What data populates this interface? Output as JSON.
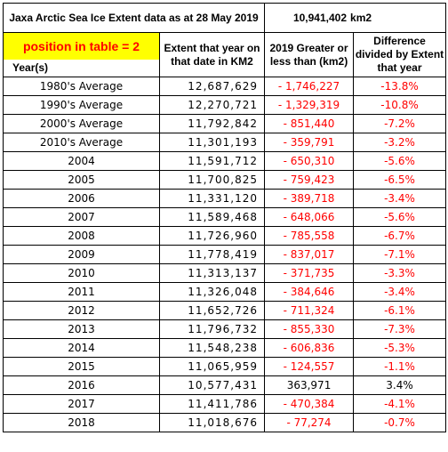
{
  "title": "Jaxa Arctic Sea Ice Extent data as at 28 May 2019",
  "current_value": "10,941,402",
  "current_unit": "km2",
  "position_label": "position in table = 2",
  "headers": {
    "year": "Year(s)",
    "extent": "Extent that year on that date in KM2",
    "diff": "2019 Greater or less than (km2)",
    "ratio": "Difference divided by Extent that year"
  },
  "colors": {
    "negative": "#ff0000",
    "highlight": "#ffff00"
  },
  "rows": [
    {
      "label": "1980's Average",
      "extent": "12,687,629",
      "diff": "- 1,746,227",
      "ratio": "-13.8%",
      "negative": true
    },
    {
      "label": "1990's Average",
      "extent": "12,270,721",
      "diff": "- 1,329,319",
      "ratio": "-10.8%",
      "negative": true
    },
    {
      "label": "2000's Average",
      "extent": "11,792,842",
      "diff": "- 851,440",
      "ratio": "-7.2%",
      "negative": true
    },
    {
      "label": "2010's Average",
      "extent": "11,301,193",
      "diff": "- 359,791",
      "ratio": "-3.2%",
      "negative": true
    },
    {
      "label": "2004",
      "extent": "11,591,712",
      "diff": "- 650,310",
      "ratio": "-5.6%",
      "negative": true
    },
    {
      "label": "2005",
      "extent": "11,700,825",
      "diff": "- 759,423",
      "ratio": "-6.5%",
      "negative": true
    },
    {
      "label": "2006",
      "extent": "11,331,120",
      "diff": "- 389,718",
      "ratio": "-3.4%",
      "negative": true
    },
    {
      "label": "2007",
      "extent": "11,589,468",
      "diff": "- 648,066",
      "ratio": "-5.6%",
      "negative": true
    },
    {
      "label": "2008",
      "extent": "11,726,960",
      "diff": "- 785,558",
      "ratio": "-6.7%",
      "negative": true
    },
    {
      "label": "2009",
      "extent": "11,778,419",
      "diff": "- 837,017",
      "ratio": "-7.1%",
      "negative": true
    },
    {
      "label": "2010",
      "extent": "11,313,137",
      "diff": "- 371,735",
      "ratio": "-3.3%",
      "negative": true
    },
    {
      "label": "2011",
      "extent": "11,326,048",
      "diff": "- 384,646",
      "ratio": "-3.4%",
      "negative": true
    },
    {
      "label": "2012",
      "extent": "11,652,726",
      "diff": "- 711,324",
      "ratio": "-6.1%",
      "negative": true
    },
    {
      "label": "2013",
      "extent": "11,796,732",
      "diff": "- 855,330",
      "ratio": "-7.3%",
      "negative": true
    },
    {
      "label": "2014",
      "extent": "11,548,238",
      "diff": "- 606,836",
      "ratio": "-5.3%",
      "negative": true
    },
    {
      "label": "2015",
      "extent": "11,065,959",
      "diff": "- 124,557",
      "ratio": "-1.1%",
      "negative": true
    },
    {
      "label": "2016",
      "extent": "10,577,431",
      "diff": "363,971",
      "ratio": "3.4%",
      "negative": false
    },
    {
      "label": "2017",
      "extent": "11,411,786",
      "diff": "- 470,384",
      "ratio": "-4.1%",
      "negative": true
    },
    {
      "label": "2018",
      "extent": "11,018,676",
      "diff": "- 77,274",
      "ratio": "-0.7%",
      "negative": true
    }
  ]
}
